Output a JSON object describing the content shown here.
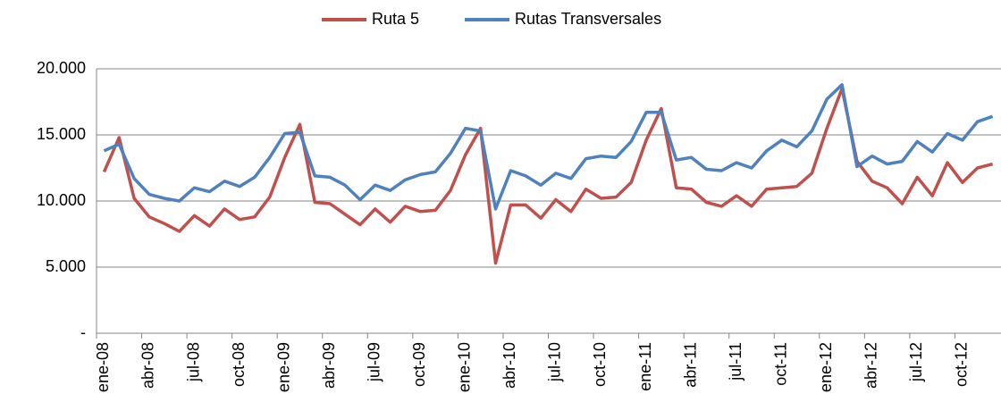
{
  "chart_data": {
    "type": "line",
    "categories": [
      "ene-08",
      null,
      null,
      "abr-08",
      null,
      null,
      "jul-08",
      null,
      null,
      "oct-08",
      null,
      null,
      "ene-09",
      null,
      null,
      "abr-09",
      null,
      null,
      "jul-09",
      null,
      null,
      "oct-09",
      null,
      null,
      "ene-10",
      null,
      null,
      "abr-10",
      null,
      null,
      "jul-10",
      null,
      null,
      "oct-10",
      null,
      null,
      "ene-11",
      null,
      null,
      "abr-11",
      null,
      null,
      "jul-11",
      null,
      null,
      "oct-11",
      null,
      null,
      "ene-12",
      null,
      null,
      "abr-12",
      null,
      null,
      "jul-12",
      null,
      null,
      "oct-12",
      null,
      null
    ],
    "series": [
      {
        "name": "Ruta 5",
        "color": "#c0504d",
        "values": [
          12200,
          14800,
          10200,
          8800,
          8300,
          7700,
          8900,
          8100,
          9400,
          8600,
          8800,
          10300,
          13300,
          15800,
          9900,
          9800,
          9000,
          8200,
          9400,
          8400,
          9600,
          9200,
          9300,
          10800,
          13500,
          15500,
          5300,
          9700,
          9700,
          8700,
          10100,
          9200,
          10900,
          10200,
          10300,
          11400,
          14600,
          17000,
          11000,
          10900,
          9900,
          9600,
          10400,
          9600,
          10900,
          11000,
          11100,
          12100,
          15500,
          18500,
          13000,
          11500,
          11000,
          9800,
          11800,
          10400,
          12900,
          11400,
          12500,
          12800
        ]
      },
      {
        "name": "Rutas Transversales",
        "color": "#4f81bd",
        "values": [
          13800,
          14300,
          11700,
          10500,
          10200,
          10000,
          11000,
          10700,
          11500,
          11100,
          11800,
          13300,
          15100,
          15200,
          11900,
          11800,
          11200,
          10100,
          11200,
          10800,
          11600,
          12000,
          12200,
          13600,
          15500,
          15300,
          9400,
          12300,
          11900,
          11200,
          12100,
          11700,
          13200,
          13400,
          13300,
          14500,
          16700,
          16700,
          13100,
          13300,
          12400,
          12300,
          12900,
          12500,
          13800,
          14600,
          14100,
          15300,
          17700,
          18800,
          12600,
          13400,
          12800,
          13000,
          14500,
          13700,
          15100,
          14600,
          16000,
          16400
        ]
      }
    ],
    "ylim": [
      0,
      20000
    ],
    "yticks": [
      {
        "value": 0,
        "label": "-"
      },
      {
        "value": 5000,
        "label": "5.000"
      },
      {
        "value": 10000,
        "label": "10.000"
      },
      {
        "value": 15000,
        "label": "15.000"
      },
      {
        "value": 20000,
        "label": "20.000"
      }
    ],
    "grid": true,
    "legend": "top"
  }
}
